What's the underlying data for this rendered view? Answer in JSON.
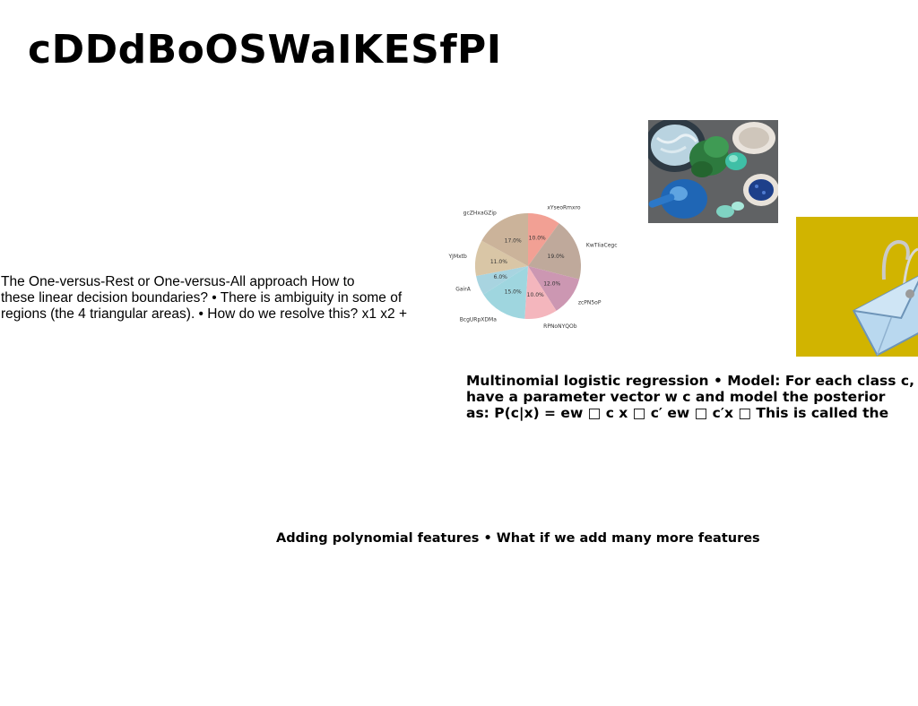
{
  "slide": {
    "title": "cDDdBoOSWaIKESfPI",
    "left_text": [
      "The One-versus-Rest or One-versus-All approach How to",
      "these linear decision boundaries? • There is ambiguity in some of",
      "regions (the 4 triangular areas). • How do we resolve this? x1 x2 +"
    ],
    "right_text": [
      "Multinomial logistic regression • Model: For each class c, we",
      "have a parameter vector w c and model the posterior",
      "as: P(c|x) = ew □ c x □ c′ ew □ c′x □ This is called the"
    ],
    "bottom_text": "Adding polynomial features • What if we add many more features"
  },
  "chart_data": {
    "type": "pie",
    "categories": [
      "xYseoRmxro",
      "KwTIiaCegc",
      "zcPN5oP",
      "RPNoNYQOb",
      "BcgURpXDMa",
      "GairA",
      "YJMxtb",
      "gcZHxaGZip"
    ],
    "values": [
      10.0,
      19.0,
      12.0,
      10.0,
      15.0,
      6.0,
      11.0,
      17.0
    ],
    "labels": [
      "10.0%",
      "19.0%",
      "12.0%",
      "10.0%",
      "15.0%",
      "6.0%",
      "11.0%",
      "17.0%"
    ],
    "colors": [
      "#f2a094",
      "#bfa99b",
      "#cc97b2",
      "#f4b6bd",
      "#9fd6df",
      "#a8d4e0",
      "#d9c6a6",
      "#cbb39a"
    ],
    "title": ""
  }
}
